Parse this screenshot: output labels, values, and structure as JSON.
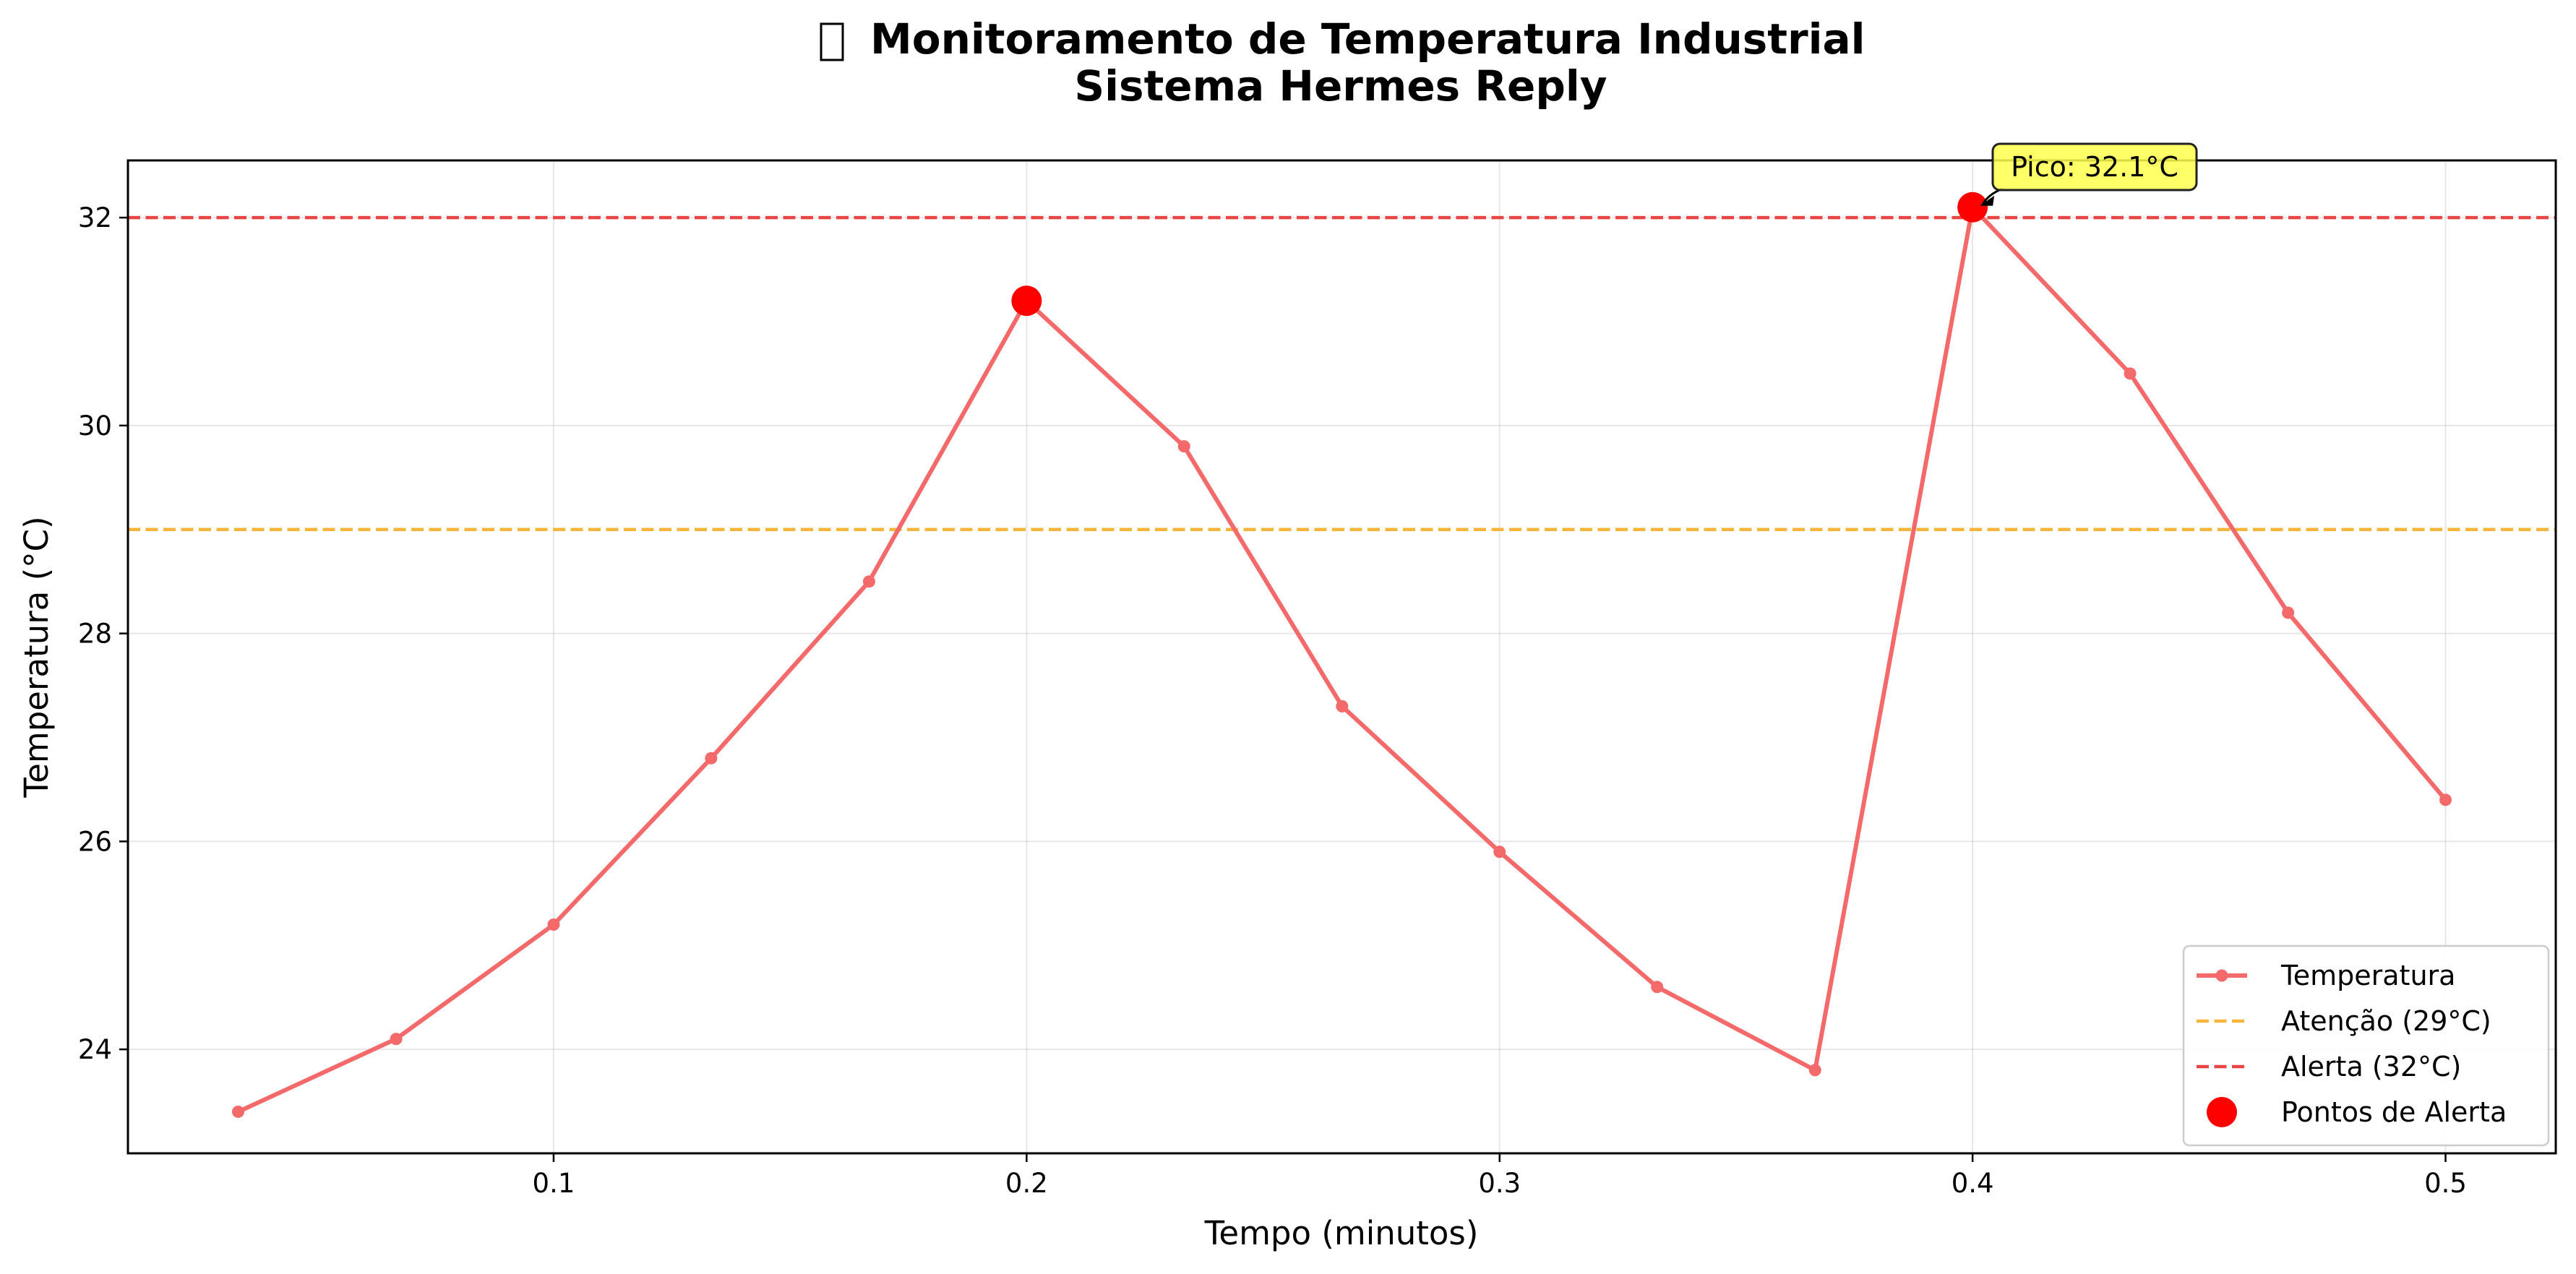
{
  "title": {
    "icon": "thermometer-icon",
    "line1": "Monitoramento de Temperatura Industrial",
    "line2": "Sistema Hermes Reply"
  },
  "chart_data": {
    "type": "line",
    "xlabel": "Tempo (minutos)",
    "ylabel": "Temperatura (°C)",
    "xlim": [
      0.01,
      0.5233
    ],
    "ylim": [
      23.0,
      32.55
    ],
    "xticks": [
      0.1,
      0.2,
      0.3,
      0.4,
      0.5
    ],
    "xtick_labels": [
      "0.1",
      "0.2",
      "0.3",
      "0.4",
      "0.5"
    ],
    "yticks": [
      24,
      26,
      28,
      30,
      32
    ],
    "ytick_labels": [
      "24",
      "26",
      "28",
      "30",
      "32"
    ],
    "grid": true,
    "legend_placement": "lower-right",
    "series": [
      {
        "name": "Temperatura",
        "color": "#f46a6a",
        "x": [
          0.0333,
          0.0667,
          0.1,
          0.1333,
          0.1667,
          0.2,
          0.2333,
          0.2667,
          0.3,
          0.3333,
          0.3667,
          0.4,
          0.4333,
          0.4667,
          0.5
        ],
        "y": [
          23.4,
          24.1,
          25.2,
          26.8,
          28.5,
          31.2,
          29.8,
          27.3,
          25.9,
          24.6,
          23.8,
          32.1,
          30.5,
          28.2,
          26.4
        ]
      }
    ],
    "thresholds": [
      {
        "name": "Atenção (29°C)",
        "value": 29,
        "color": "#f5b43a"
      },
      {
        "name": "Alerta (32°C)",
        "value": 32,
        "color": "#e84545"
      }
    ],
    "alert_points": {
      "name": "Pontos de Alerta",
      "color": "#ff0000",
      "x": [
        0.2,
        0.4
      ],
      "y": [
        31.2,
        32.1
      ]
    },
    "annotation": {
      "text": "Pico: 32.1°C",
      "x": 0.4,
      "y": 32.1,
      "box_color": "#ffff4d"
    }
  }
}
